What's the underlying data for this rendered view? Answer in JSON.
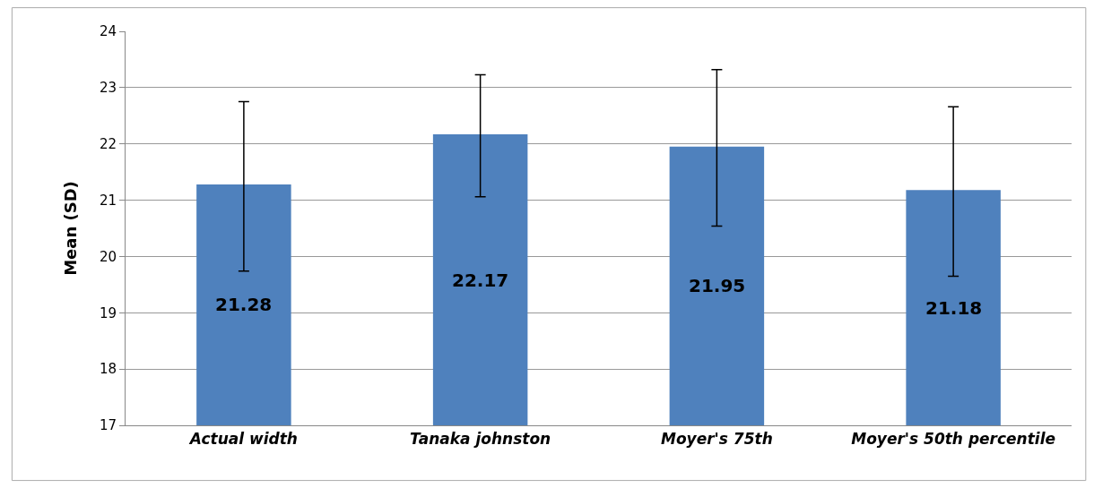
{
  "chart_data": {
    "type": "bar",
    "ylabel": "Mean (SD)",
    "categories": [
      "Actual width",
      "Tanaka johnston",
      "Moyer's 75th",
      "Moyer's 50th percentile"
    ],
    "values": [
      21.28,
      22.17,
      21.95,
      21.18
    ],
    "errors": [
      [
        19.74,
        22.75
      ],
      [
        21.06,
        23.23
      ],
      [
        20.54,
        23.32
      ],
      [
        19.65,
        22.66
      ]
    ],
    "color": "#4f81bd",
    "ylim": [
      17,
      24
    ],
    "yticks": [
      17,
      18,
      19,
      20,
      21,
      22,
      23,
      24
    ],
    "grid": "y",
    "data_labels": true
  }
}
